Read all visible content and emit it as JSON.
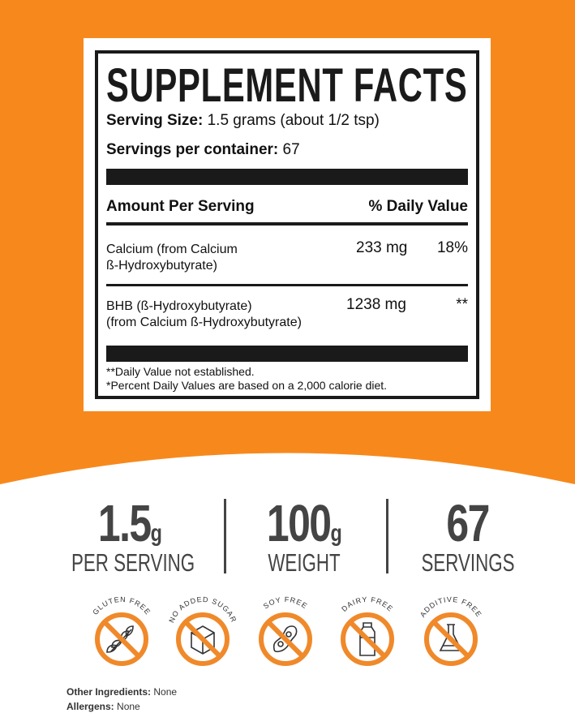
{
  "colors": {
    "orange": "#f7891c",
    "dark": "#1a1a1a",
    "gray": "#444444"
  },
  "label": {
    "title": "SUPPLEMENT FACTS",
    "serving_size_label": "Serving Size:",
    "serving_size_value": "1.5 grams (about 1/2 tsp)",
    "servings_label": "Servings per container:",
    "servings_value": "67",
    "amount_header": "Amount Per Serving",
    "dv_header": "% Daily Value",
    "rows": [
      {
        "name1": "Calcium (from Calcium",
        "name2": "ß-Hydroxybutyrate)",
        "amount": "233 mg",
        "dv": "18%"
      },
      {
        "name1": "BHB (ß-Hydroxybutyrate)",
        "name2": "(from Calcium ß-Hydroxybutyrate)",
        "amount": "1238 mg",
        "dv": "**"
      }
    ],
    "footnote1": "**Daily Value not established.",
    "footnote2": "*Percent Daily Values are based on a 2,000 calorie diet."
  },
  "stats": [
    {
      "value": "1.5",
      "unit": "g",
      "label": "PER SERVING"
    },
    {
      "value": "100",
      "unit": "g",
      "label": "WEIGHT"
    },
    {
      "value": "67",
      "unit": "",
      "label": "SERVINGS"
    }
  ],
  "badges": [
    {
      "text": "GLUTEN FREE",
      "icon": "wheat-icon"
    },
    {
      "text": "NO ADDED SUGAR",
      "icon": "sugar-cube-icon"
    },
    {
      "text": "SOY FREE",
      "icon": "soybean-icon"
    },
    {
      "text": "DAIRY FREE",
      "icon": "milk-bottle-icon"
    },
    {
      "text": "ADDITIVE FREE",
      "icon": "flask-icon"
    }
  ],
  "other_ingredients_label": "Other Ingredients:",
  "other_ingredients_value": "None",
  "allergens_label": "Allergens:",
  "allergens_value": "None"
}
